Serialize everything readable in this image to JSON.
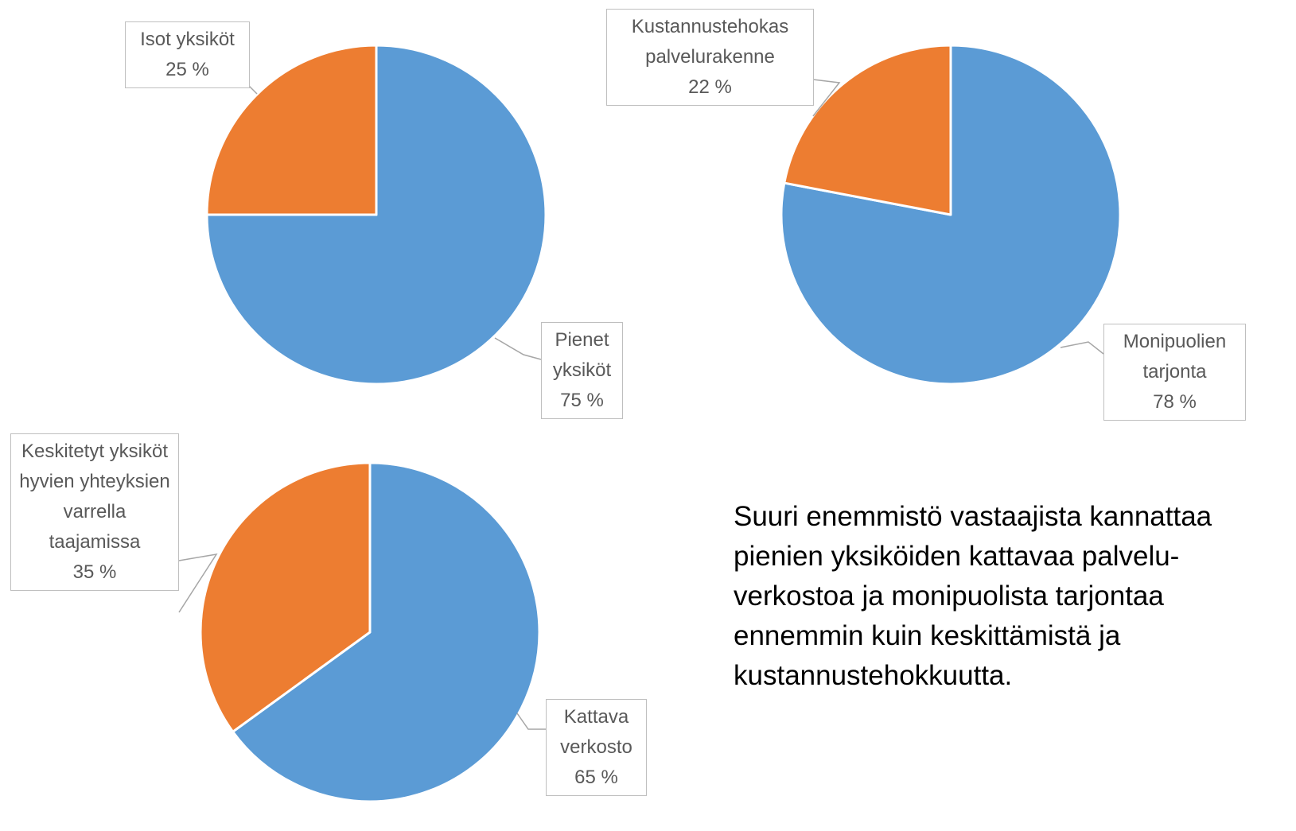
{
  "chart_data": [
    {
      "type": "pie",
      "categories": [
        "Pienet yksiköt",
        "Isot yksiköt"
      ],
      "values": [
        75,
        25
      ],
      "value_labels": [
        "75 %",
        "25 %"
      ],
      "colors": [
        "#5b9bd5",
        "#ed7d31"
      ]
    },
    {
      "type": "pie",
      "categories": [
        "Monipuolien tarjonta",
        "Kustannustehokas palvelurakenne"
      ],
      "values": [
        78,
        22
      ],
      "value_labels": [
        "78 %",
        "22 %"
      ],
      "colors": [
        "#5b9bd5",
        "#ed7d31"
      ]
    },
    {
      "type": "pie",
      "categories": [
        "Kattava verkosto",
        "Keskitetyt yksiköt hyvien yhteyksien varrella taajamissa"
      ],
      "values": [
        65,
        35
      ],
      "value_labels": [
        "65 %",
        "35 %"
      ],
      "colors": [
        "#5b9bd5",
        "#ed7d31"
      ]
    }
  ],
  "note": {
    "lines": [
      "Suuri enemmistö vastaajista kannattaa",
      "pienien yksiköiden kattavaa palvelu-",
      "verkostoa ja monipuolista tarjontaa",
      "ennemmin kuin keskittämistä ja",
      "kustannustehokkuutta."
    ]
  }
}
